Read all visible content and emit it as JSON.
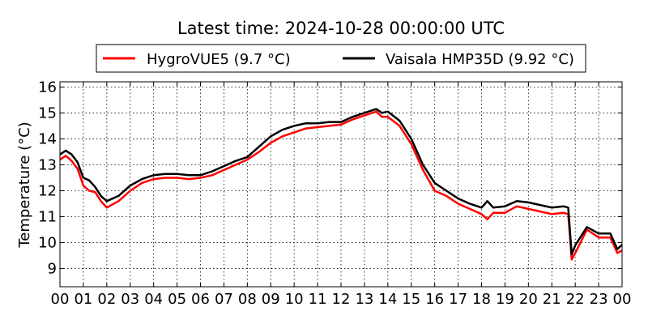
{
  "chart_data": {
    "type": "line",
    "title": "Latest time: 2024-10-28 00:00:00 UTC",
    "xlabel": "",
    "ylabel": "Temperature (°C)",
    "xlim": [
      0,
      24
    ],
    "ylim": [
      8.3,
      16.2
    ],
    "grid": true,
    "legend_placement": "top-center-outside",
    "x_ticks": [
      0,
      1,
      2,
      3,
      4,
      5,
      6,
      7,
      8,
      9,
      10,
      11,
      12,
      13,
      14,
      15,
      16,
      17,
      18,
      19,
      20,
      21,
      22,
      23,
      24
    ],
    "x_tick_labels": [
      "00",
      "01",
      "02",
      "03",
      "04",
      "05",
      "06",
      "07",
      "08",
      "09",
      "10",
      "11",
      "12",
      "13",
      "14",
      "15",
      "16",
      "17",
      "18",
      "19",
      "20",
      "21",
      "22",
      "23",
      "00"
    ],
    "y_ticks": [
      9,
      10,
      11,
      12,
      13,
      14,
      15,
      16
    ],
    "y_tick_labels": [
      "9",
      "10",
      "11",
      "12",
      "13",
      "14",
      "15",
      "16"
    ],
    "series": [
      {
        "name": "HygroVUE5 (9.7 °C)",
        "color": "#ff0000",
        "x": [
          0,
          0.25,
          0.5,
          0.75,
          1,
          1.25,
          1.5,
          1.75,
          2,
          2.5,
          3,
          3.5,
          4,
          4.5,
          5,
          5.5,
          6,
          6.5,
          7,
          7.5,
          8,
          8.5,
          9,
          9.5,
          10,
          10.5,
          11,
          11.5,
          12,
          12.5,
          13,
          13.5,
          13.75,
          14,
          14.5,
          15,
          15.5,
          16,
          16.5,
          17,
          17.5,
          18,
          18.25,
          18.5,
          19,
          19.5,
          20,
          20.5,
          21,
          21.5,
          21.7,
          21.85,
          22,
          22.5,
          23,
          23.5,
          23.8,
          24
        ],
        "y": [
          13.2,
          13.35,
          13.15,
          12.85,
          12.2,
          12.0,
          11.95,
          11.6,
          11.35,
          11.6,
          12.0,
          12.3,
          12.45,
          12.5,
          12.5,
          12.45,
          12.5,
          12.6,
          12.8,
          13.0,
          13.2,
          13.5,
          13.85,
          14.1,
          14.25,
          14.4,
          14.45,
          14.5,
          14.55,
          14.75,
          14.9,
          15.05,
          14.85,
          14.85,
          14.5,
          13.8,
          12.8,
          12.0,
          11.8,
          11.5,
          11.3,
          11.1,
          10.9,
          11.15,
          11.15,
          11.4,
          11.3,
          11.2,
          11.1,
          11.15,
          11.1,
          9.35,
          9.6,
          10.5,
          10.2,
          10.2,
          9.6,
          9.7
        ]
      },
      {
        "name": "Vaisala HMP35D (9.92 °C)",
        "color": "#000000",
        "x": [
          0,
          0.25,
          0.5,
          0.75,
          1,
          1.25,
          1.5,
          1.75,
          2,
          2.5,
          3,
          3.5,
          4,
          4.5,
          5,
          5.5,
          6,
          6.5,
          7,
          7.5,
          8,
          8.5,
          9,
          9.5,
          10,
          10.5,
          11,
          11.5,
          12,
          12.5,
          13,
          13.5,
          13.75,
          14,
          14.5,
          15,
          15.5,
          16,
          16.5,
          17,
          17.5,
          18,
          18.25,
          18.5,
          19,
          19.5,
          20,
          20.5,
          21,
          21.5,
          21.7,
          21.85,
          22,
          22.5,
          23,
          23.5,
          23.8,
          24
        ],
        "y": [
          13.4,
          13.55,
          13.4,
          13.1,
          12.5,
          12.4,
          12.15,
          11.8,
          11.6,
          11.8,
          12.2,
          12.45,
          12.6,
          12.65,
          12.65,
          12.6,
          12.6,
          12.75,
          12.95,
          13.15,
          13.3,
          13.7,
          14.1,
          14.35,
          14.5,
          14.6,
          14.6,
          14.65,
          14.65,
          14.85,
          15.0,
          15.15,
          15.0,
          15.05,
          14.7,
          14.0,
          13.0,
          12.3,
          12.0,
          11.7,
          11.5,
          11.35,
          11.6,
          11.35,
          11.4,
          11.6,
          11.55,
          11.45,
          11.35,
          11.4,
          11.35,
          9.55,
          9.9,
          10.6,
          10.35,
          10.35,
          9.75,
          9.92
        ]
      }
    ]
  }
}
